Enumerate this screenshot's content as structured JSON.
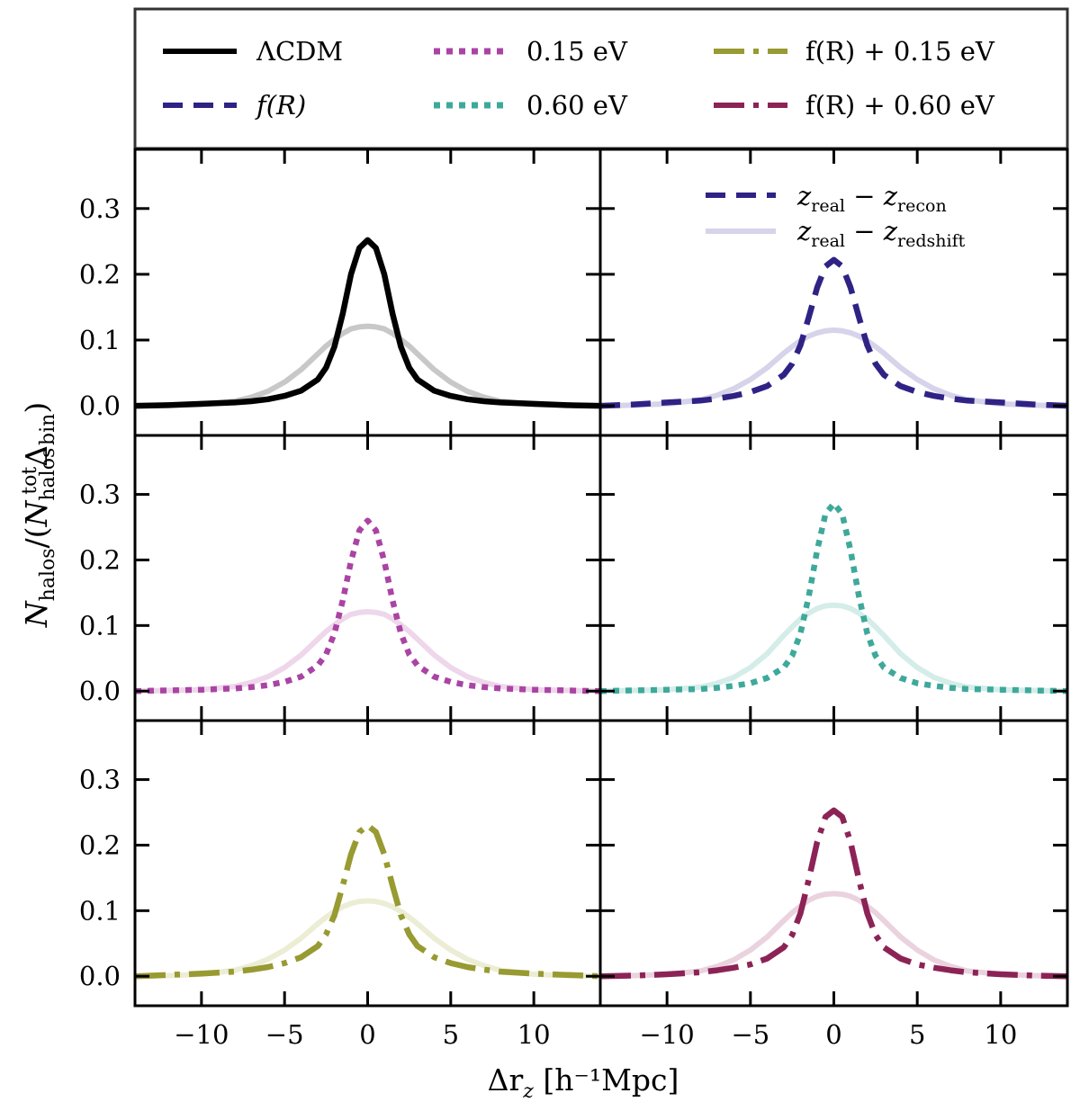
{
  "figure": {
    "xlabel": "Δr_z [h⁻¹Mpc]",
    "xlabel_main": "Δr",
    "xlabel_sub": "z",
    "xlabel_unit": "[h⁻¹Mpc]",
    "ylabel": "N_halos/(N_halos^tot Δ_bin)",
    "ylabel_n": "N",
    "ylabel_sub": "halos",
    "ylabel_open": "/(",
    "ylabel_sup": "tot",
    "ylabel_delta": "Δ",
    "ylabel_sub2": "bin",
    "ylabel_close": ")"
  },
  "legend": {
    "entries": [
      {
        "id": "lcdm",
        "label": "ΛCDM",
        "color": "#000000",
        "style": "solid"
      },
      {
        "id": "fr",
        "label": "f(R)",
        "color": "#2e2385",
        "style": "dashed"
      },
      {
        "id": "nu015",
        "label": "0.15 eV",
        "color": "#aa44a4",
        "style": "dotted"
      },
      {
        "id": "nu060",
        "label": "0.60 eV",
        "color": "#3ea99a",
        "style": "dotted"
      },
      {
        "id": "fr015",
        "label": "f(R) + 0.15 eV",
        "color": "#989a32",
        "style": "dashdot"
      },
      {
        "id": "fr060",
        "label": "f(R) + 0.60 eV",
        "color": "#8c2356",
        "style": "dashdot"
      }
    ],
    "panel_legend": [
      {
        "label": "z_real − z_recon",
        "main": "z",
        "sub1": "real",
        "op": " − ",
        "main2": "z",
        "sub2": "recon",
        "color": "#2e2385",
        "style": "dashed"
      },
      {
        "label": "z_real − z_redshift",
        "main": "z",
        "sub1": "real",
        "op": " − ",
        "main2": "z",
        "sub2": "redshift",
        "color": "#d6d3ea",
        "style": "solid"
      }
    ]
  },
  "chart_data": {
    "type": "line",
    "xlabel": "Δr_z [h⁻¹Mpc]",
    "ylabel": "N_halos/(N_halos^tot Δ_bin)",
    "xlim": [
      -14,
      14
    ],
    "ylim": [
      -0.045,
      0.39
    ],
    "xticks": [
      -10,
      -5,
      0,
      5,
      10
    ],
    "xtick_labels": [
      "−10",
      "−5",
      "0",
      "5",
      "10"
    ],
    "yticks": [
      0.0,
      0.1,
      0.2,
      0.3
    ],
    "ytick_labels": [
      "0.0",
      "0.1",
      "0.2",
      "0.3"
    ],
    "x": [
      -14,
      -12,
      -10,
      -8,
      -7,
      -6,
      -5,
      -4,
      -3,
      -2.5,
      -2,
      -1.5,
      -1,
      -0.5,
      0,
      0.5,
      1,
      1.5,
      2,
      2.5,
      3,
      4,
      5,
      6,
      7,
      8,
      10,
      12,
      14
    ],
    "panels": [
      {
        "id": "lcdm",
        "series": [
          {
            "name": "z_real − z_redshift (ΛCDM)",
            "color": "#c8c8c8",
            "style": "solid",
            "values": [
              0.0,
              0.001,
              0.002,
              0.007,
              0.013,
              0.022,
              0.036,
              0.055,
              0.079,
              0.091,
              0.101,
              0.11,
              0.117,
              0.12,
              0.121,
              0.12,
              0.117,
              0.11,
              0.101,
              0.091,
              0.079,
              0.055,
              0.036,
              0.022,
              0.013,
              0.007,
              0.002,
              0.001,
              0.0
            ]
          },
          {
            "name": "z_real − z_recon (ΛCDM)",
            "color": "#000000",
            "style": "solid",
            "values": [
              0.0,
              0.001,
              0.003,
              0.005,
              0.007,
              0.01,
              0.015,
              0.023,
              0.04,
              0.058,
              0.09,
              0.14,
              0.2,
              0.24,
              0.252,
              0.24,
              0.2,
              0.14,
              0.09,
              0.058,
              0.04,
              0.023,
              0.015,
              0.01,
              0.007,
              0.005,
              0.003,
              0.001,
              0.0
            ]
          }
        ]
      },
      {
        "id": "fr",
        "series": [
          {
            "name": "z_real − z_redshift (f(R))",
            "color": "#d6d3ea",
            "style": "solid",
            "values": [
              0.0,
              0.001,
              0.003,
              0.009,
              0.016,
              0.026,
              0.04,
              0.058,
              0.08,
              0.09,
              0.099,
              0.106,
              0.111,
              0.114,
              0.115,
              0.114,
              0.111,
              0.106,
              0.099,
              0.09,
              0.08,
              0.058,
              0.04,
              0.026,
              0.016,
              0.009,
              0.003,
              0.001,
              0.0
            ]
          },
          {
            "name": "z_real − z_recon (f(R))",
            "color": "#2e2385",
            "style": "dashed",
            "values": [
              0.0,
              0.002,
              0.005,
              0.008,
              0.011,
              0.015,
              0.021,
              0.03,
              0.047,
              0.064,
              0.092,
              0.135,
              0.18,
              0.212,
              0.222,
              0.212,
              0.18,
              0.135,
              0.092,
              0.064,
              0.047,
              0.03,
              0.021,
              0.015,
              0.011,
              0.008,
              0.005,
              0.002,
              0.0
            ]
          }
        ]
      },
      {
        "id": "nu015",
        "series": [
          {
            "name": "z_real − z_redshift (0.15 eV)",
            "color": "#eed7eb",
            "style": "solid",
            "values": [
              0.0,
              0.001,
              0.002,
              0.007,
              0.013,
              0.022,
              0.036,
              0.055,
              0.079,
              0.091,
              0.101,
              0.11,
              0.117,
              0.12,
              0.121,
              0.12,
              0.117,
              0.11,
              0.101,
              0.091,
              0.079,
              0.055,
              0.036,
              0.022,
              0.013,
              0.007,
              0.002,
              0.001,
              0.0
            ]
          },
          {
            "name": "z_real − z_recon (0.15 eV)",
            "color": "#aa44a4",
            "style": "dotted",
            "values": [
              0.0,
              0.001,
              0.002,
              0.004,
              0.006,
              0.009,
              0.014,
              0.022,
              0.039,
              0.056,
              0.088,
              0.138,
              0.198,
              0.245,
              0.26,
              0.245,
              0.198,
              0.138,
              0.088,
              0.056,
              0.039,
              0.022,
              0.014,
              0.009,
              0.006,
              0.004,
              0.002,
              0.001,
              0.0
            ]
          }
        ]
      },
      {
        "id": "nu060",
        "series": [
          {
            "name": "z_real − z_redshift (0.60 eV)",
            "color": "#d4ede9",
            "style": "solid",
            "values": [
              0.0,
              0.001,
              0.002,
              0.006,
              0.012,
              0.021,
              0.036,
              0.057,
              0.085,
              0.098,
              0.11,
              0.119,
              0.126,
              0.13,
              0.131,
              0.13,
              0.126,
              0.119,
              0.11,
              0.098,
              0.085,
              0.057,
              0.036,
              0.021,
              0.012,
              0.006,
              0.002,
              0.001,
              0.0
            ]
          },
          {
            "name": "z_real − z_recon (0.60 eV)",
            "color": "#3ea99a",
            "style": "dotted",
            "values": [
              0.0,
              0.001,
              0.002,
              0.003,
              0.005,
              0.008,
              0.012,
              0.02,
              0.036,
              0.054,
              0.088,
              0.145,
              0.215,
              0.27,
              0.286,
              0.27,
              0.215,
              0.145,
              0.088,
              0.054,
              0.036,
              0.02,
              0.012,
              0.008,
              0.005,
              0.003,
              0.002,
              0.001,
              0.0
            ]
          }
        ]
      },
      {
        "id": "fr015",
        "series": [
          {
            "name": "z_real − z_redshift (f(R) + 0.15 eV)",
            "color": "#ecedd5",
            "style": "solid",
            "values": [
              0.0,
              0.001,
              0.003,
              0.009,
              0.016,
              0.026,
              0.04,
              0.058,
              0.08,
              0.09,
              0.099,
              0.106,
              0.111,
              0.114,
              0.115,
              0.114,
              0.111,
              0.106,
              0.099,
              0.09,
              0.08,
              0.058,
              0.04,
              0.026,
              0.016,
              0.009,
              0.003,
              0.001,
              0.0
            ]
          },
          {
            "name": "z_real − z_recon (f(R) + 0.15 eV)",
            "color": "#989a32",
            "style": "dashdot",
            "values": [
              0.0,
              0.002,
              0.004,
              0.007,
              0.01,
              0.014,
              0.02,
              0.029,
              0.046,
              0.064,
              0.093,
              0.138,
              0.186,
              0.22,
              0.23,
              0.22,
              0.186,
              0.138,
              0.093,
              0.064,
              0.046,
              0.029,
              0.02,
              0.014,
              0.01,
              0.007,
              0.004,
              0.002,
              0.0
            ]
          }
        ]
      },
      {
        "id": "fr060",
        "series": [
          {
            "name": "z_real − z_redshift (f(R) + 0.60 eV)",
            "color": "#ead3de",
            "style": "solid",
            "values": [
              0.0,
              0.001,
              0.003,
              0.008,
              0.015,
              0.025,
              0.04,
              0.06,
              0.085,
              0.097,
              0.107,
              0.116,
              0.122,
              0.125,
              0.126,
              0.125,
              0.122,
              0.116,
              0.107,
              0.097,
              0.085,
              0.06,
              0.04,
              0.025,
              0.015,
              0.008,
              0.003,
              0.001,
              0.0
            ]
          },
          {
            "name": "z_real − z_recon (f(R) + 0.60 eV)",
            "color": "#8c2356",
            "style": "dashdot",
            "values": [
              0.0,
              0.001,
              0.003,
              0.006,
              0.009,
              0.013,
              0.018,
              0.027,
              0.044,
              0.063,
              0.096,
              0.148,
              0.205,
              0.243,
              0.253,
              0.243,
              0.205,
              0.148,
              0.096,
              0.063,
              0.044,
              0.027,
              0.018,
              0.013,
              0.009,
              0.006,
              0.003,
              0.001,
              0.0
            ]
          }
        ]
      }
    ]
  }
}
